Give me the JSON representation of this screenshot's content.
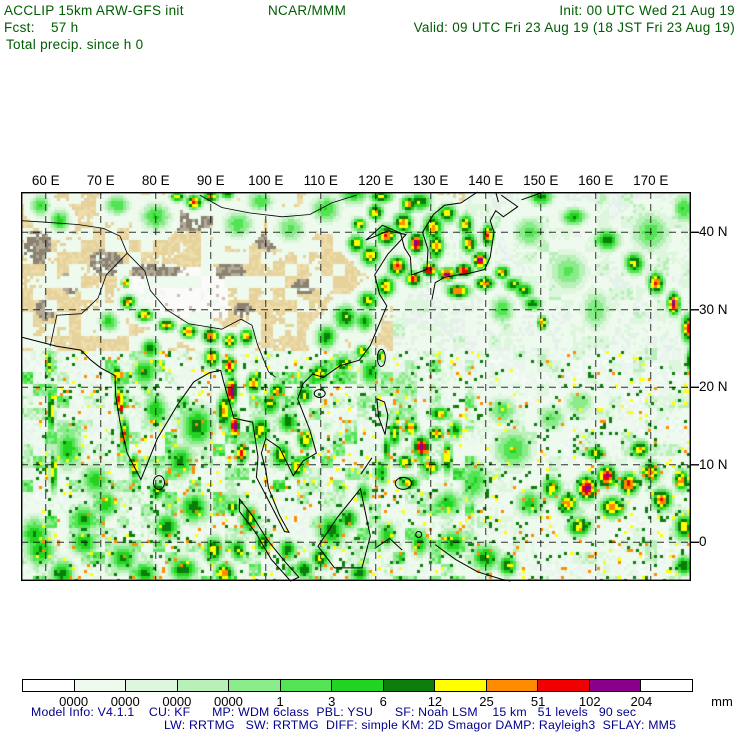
{
  "header": {
    "title": "ACCLIP 15km ARW-GFS init",
    "center": "NCAR/MMM",
    "init": "Init: 00 UTC Wed 21 Aug 19",
    "fcst": "Fcst:    57 h",
    "valid": "Valid: 09 UTC Fri 23 Aug 19 (18 JST Fri 23 Aug 19)",
    "field": "Total precip. since h 0"
  },
  "footer": {
    "line1": "Model Info: V4.1.1    CU: KF      MP: WDM 6class  PBL: YSU      SF: Noah LSM    15 km   51 levels   90 sec",
    "line2": "LW: RRTMG   SW: RRTMG  DIFF: simple KM: 2D Smagor DAMP: Rayleigh3  SFLAY: MM5"
  },
  "colorbar": {
    "labels": [
      "0000",
      "0000",
      "0000",
      "0000",
      "1",
      "3",
      "6",
      "12",
      "25",
      "51",
      "102",
      "204"
    ],
    "unit": "mm",
    "colors": [
      "#ffffff",
      "#edfaed",
      "#ddf6dd",
      "#b9f0b9",
      "#8aeb8a",
      "#52e452",
      "#22d322",
      "#0a7d0a",
      "#ffff00",
      "#ff8c00",
      "#f00000",
      "#8b008b",
      "#ffffff"
    ]
  },
  "map": {
    "lon_ticks": [
      {
        "label": "60 E",
        "lon": 60
      },
      {
        "label": "70 E",
        "lon": 70
      },
      {
        "label": "80 E",
        "lon": 80
      },
      {
        "label": "90 E",
        "lon": 90
      },
      {
        "label": "100 E",
        "lon": 100
      },
      {
        "label": "110 E",
        "lon": 110
      },
      {
        "label": "120 E",
        "lon": 120
      },
      {
        "label": "130 E",
        "lon": 130
      },
      {
        "label": "140 E",
        "lon": 140
      },
      {
        "label": "150 E",
        "lon": 150
      },
      {
        "label": "160 E",
        "lon": 160
      },
      {
        "label": "170 E",
        "lon": 170
      }
    ],
    "lat_ticks": [
      {
        "label": "40 N",
        "lat": 40
      },
      {
        "label": "30 N",
        "lat": 30
      },
      {
        "label": "20 N",
        "lat": 20
      },
      {
        "label": "10 N",
        "lat": 10
      },
      {
        "label": "0",
        "lat": 0
      }
    ],
    "base_colors": {
      "ocean_a": "#f5fbf7",
      "ocean_b": "#eaf5ee",
      "land_a": "#eedcab",
      "land_b": "#e6d29b",
      "gray_a": "#b2a996",
      "gray_b": "#8b8272",
      "plateau": "#fbfbf9",
      "plateau_speck": "#c9c2b6",
      "ne_ocean_a": "#edf6f0",
      "ne_ocean_b": "#e4f1e9"
    },
    "terrain": [
      [
        71,
        36,
        3.5,
        2
      ],
      [
        86.5,
        41.5,
        4.5,
        1.7
      ],
      [
        58.5,
        38,
        3,
        2.5
      ],
      [
        64.5,
        33.5,
        2,
        1.5
      ],
      [
        100.5,
        38.8,
        2.5,
        1.3
      ],
      [
        93.5,
        35,
        3,
        1.3
      ],
      [
        80,
        35,
        5,
        1.2
      ],
      [
        96,
        30,
        2,
        1
      ],
      [
        107,
        33,
        2.5,
        1.2
      ],
      [
        60,
        30,
        2,
        1.5
      ]
    ],
    "features": [
      [
        75,
        31,
        1.6,
        1,
        9.3
      ],
      [
        78,
        29.3,
        1.8,
        0.9,
        9.6
      ],
      [
        82,
        28,
        1.8,
        0.9,
        9.3
      ],
      [
        86,
        27.2,
        1.8,
        1,
        9.8
      ],
      [
        90,
        26.6,
        1.8,
        1.1,
        10.2
      ],
      [
        93.5,
        26,
        1.5,
        1.1,
        9.6
      ],
      [
        96.5,
        26.5,
        1.5,
        1.2,
        9.2
      ],
      [
        74.5,
        33.5,
        0.8,
        0.7,
        10.2
      ],
      [
        71.5,
        28.5,
        2,
        1.5,
        6.5
      ],
      [
        72.9,
        21.5,
        1,
        1.5,
        9.6
      ],
      [
        73.4,
        18.5,
        0.9,
        2,
        10.6
      ],
      [
        74.3,
        14,
        0.9,
        2.2,
        10.2
      ],
      [
        76.2,
        9.8,
        1,
        1.8,
        9.8
      ],
      [
        73.7,
        17.3,
        0.35,
        0.9,
        11.5
      ],
      [
        78,
        22,
        2.5,
        2,
        7.5
      ],
      [
        80,
        17,
        2.5,
        2.5,
        7
      ],
      [
        79,
        25,
        2,
        1.5,
        7.5
      ],
      [
        61,
        17,
        0.7,
        3.5,
        9.3
      ],
      [
        61.4,
        9,
        0.8,
        3,
        8.6
      ],
      [
        60.6,
        23,
        0.7,
        2,
        8.2
      ],
      [
        64,
        12,
        3,
        3,
        6.8
      ],
      [
        69,
        8,
        3,
        2.5,
        6.5
      ],
      [
        67,
        3,
        3,
        2,
        7.2
      ],
      [
        59,
        -1,
        3,
        2.5,
        7.2
      ],
      [
        63,
        -4,
        2.5,
        2,
        7.6
      ],
      [
        93.8,
        19.5,
        1.1,
        2.2,
        11.8
      ],
      [
        94.3,
        15,
        1.1,
        2,
        11.5
      ],
      [
        93.4,
        22.8,
        1.4,
        1.4,
        10.6
      ],
      [
        95.6,
        11.5,
        1.2,
        1.6,
        10.2
      ],
      [
        92.5,
        17,
        1.5,
        2.5,
        9.5
      ],
      [
        90.2,
        23.8,
        1.6,
        1.4,
        9.8
      ],
      [
        87.5,
        15,
        3.5,
        3,
        7.6
      ],
      [
        84.5,
        10.5,
        3,
        2.5,
        7.3
      ],
      [
        87,
        4.5,
        3,
        2.2,
        7.8
      ],
      [
        82,
        2,
        2.7,
        2,
        7.6
      ],
      [
        90.5,
        -1,
        2,
        2,
        8.6
      ],
      [
        92.5,
        -4,
        2,
        1.5,
        9.6
      ],
      [
        85,
        -3.5,
        3,
        1.8,
        8
      ],
      [
        80.3,
        6.6,
        1.6,
        1.3,
        8.2
      ],
      [
        99,
        14.5,
        2,
        2,
        8.6
      ],
      [
        102.8,
        11.2,
        2,
        1.8,
        8.8
      ],
      [
        105.7,
        9.7,
        1.5,
        1.5,
        9.3
      ],
      [
        100.8,
        17.8,
        2,
        1.6,
        8.3
      ],
      [
        107.2,
        13.2,
        1.6,
        1.5,
        9.1
      ],
      [
        102,
        19.5,
        1.6,
        1.2,
        9.2
      ],
      [
        97.8,
        20.5,
        1.5,
        1.5,
        9.6
      ],
      [
        104,
        15.5,
        2,
        1.5,
        8
      ],
      [
        109.8,
        21.8,
        2,
        1.5,
        8.8
      ],
      [
        114,
        23,
        2,
        1.2,
        8.3
      ],
      [
        117.6,
        24.6,
        1.5,
        1,
        8.8
      ],
      [
        121,
        24,
        0.7,
        0.8,
        9.8
      ],
      [
        119,
        22,
        2,
        2,
        7.3
      ],
      [
        111,
        26.5,
        2.2,
        1.8,
        7.6
      ],
      [
        114.5,
        29,
        2.4,
        1.8,
        8.1
      ],
      [
        118,
        28.5,
        2,
        1.5,
        7.4
      ],
      [
        107,
        19,
        1.8,
        1.3,
        8.6
      ],
      [
        118.6,
        31.2,
        2,
        1.3,
        8.6
      ],
      [
        121.8,
        33,
        2,
        1.5,
        9.2
      ],
      [
        119,
        37,
        2,
        1.5,
        9.2
      ],
      [
        122,
        39.6,
        2,
        1.5,
        10.2
      ],
      [
        125,
        41.2,
        2,
        1.5,
        9.7
      ],
      [
        127.4,
        38.6,
        1.5,
        1.5,
        11.7
      ],
      [
        124,
        35.6,
        2,
        1.5,
        10.2
      ],
      [
        126.8,
        34,
        1.6,
        1.1,
        10.6
      ],
      [
        129.8,
        35.2,
        1.5,
        1,
        11.5
      ],
      [
        133,
        34.6,
        1.8,
        0.9,
        11.7
      ],
      [
        136,
        35.1,
        1.8,
        0.9,
        11.3
      ],
      [
        139,
        36.4,
        1.5,
        1.2,
        11.6
      ],
      [
        140.4,
        39.6,
        1.2,
        1.6,
        10.2
      ],
      [
        137,
        38.6,
        1.6,
        1.6,
        9.2
      ],
      [
        131,
        38.2,
        1.6,
        2,
        9.3
      ],
      [
        135,
        32.4,
        2.4,
        1,
        10.3
      ],
      [
        139.8,
        33.4,
        2,
        1,
        9.7
      ],
      [
        143,
        34.8,
        1.6,
        1,
        9.2
      ],
      [
        120,
        42.6,
        1.6,
        1.2,
        9.2
      ],
      [
        117,
        41,
        1.6,
        1,
        8.7
      ],
      [
        121,
        44.6,
        2.4,
        1,
        8.7
      ],
      [
        128,
        44,
        2.4,
        1.4,
        8.2
      ],
      [
        133,
        42.4,
        2,
        1.4,
        8.6
      ],
      [
        136.4,
        41,
        1.5,
        1.5,
        9.2
      ],
      [
        130.4,
        40.6,
        2,
        2,
        9.3
      ],
      [
        126,
        43.6,
        1.6,
        1.2,
        9.7
      ],
      [
        116.5,
        38.5,
        1.8,
        1.4,
        8.8
      ],
      [
        87,
        43.9,
        1.6,
        1,
        10.6
      ],
      [
        90,
        44.6,
        1.6,
        0.8,
        9.7
      ],
      [
        84,
        44.6,
        1.6,
        0.8,
        8.7
      ],
      [
        93,
        44.9,
        1.4,
        0.7,
        8.2
      ],
      [
        80,
        42,
        3,
        2,
        6.2
      ],
      [
        95,
        41,
        3,
        2,
        5.7
      ],
      [
        104.5,
        40.5,
        3,
        2,
        5.3
      ],
      [
        111,
        43,
        3,
        2,
        6.1
      ],
      [
        116,
        45,
        3,
        1.6,
        6.6
      ],
      [
        62.5,
        41.5,
        2,
        1.6,
        6.6
      ],
      [
        59,
        43.5,
        2,
        1.6,
        6.1
      ],
      [
        73,
        43.5,
        2.5,
        1.5,
        6
      ],
      [
        99,
        44,
        2.5,
        1.5,
        6
      ],
      [
        150,
        44.6,
        2.5,
        1.3,
        7.6
      ],
      [
        156,
        42,
        2.6,
        1.3,
        7.2
      ],
      [
        162,
        39,
        2.6,
        1.6,
        7.7
      ],
      [
        167,
        36,
        2,
        1.6,
        8.7
      ],
      [
        171,
        33.4,
        1.6,
        1.6,
        10.2
      ],
      [
        174.2,
        30.8,
        1.3,
        1.6,
        11.4
      ],
      [
        176.8,
        27.6,
        1.3,
        2,
        10.6
      ],
      [
        177.4,
        23.5,
        1.1,
        2,
        9.7
      ],
      [
        178,
        19.5,
        1,
        2,
        9
      ],
      [
        155,
        35,
        4,
        3,
        5.2
      ],
      [
        148,
        40,
        3.2,
        2.2,
        5.6
      ],
      [
        160,
        30,
        3,
        3,
        5.1
      ],
      [
        170,
        40,
        4,
        3,
        5.6
      ],
      [
        176,
        43,
        2.2,
        2.2,
        6.1
      ],
      [
        143,
        30,
        2.5,
        2,
        6
      ],
      [
        150.3,
        28.3,
        1,
        1,
        10.1
      ],
      [
        147,
        32.5,
        2,
        1.2,
        8.2
      ],
      [
        145,
        33.3,
        2,
        1,
        8.2
      ],
      [
        148.5,
        30.8,
        2,
        1,
        7.7
      ],
      [
        128.3,
        12.3,
        0.5,
        0.45,
        13.4
      ],
      [
        128.3,
        12.3,
        1.7,
        1.5,
        11.7
      ],
      [
        126.4,
        14.8,
        1.6,
        1,
        9.7
      ],
      [
        131,
        14,
        1.6,
        1,
        9.7
      ],
      [
        130,
        9.7,
        1.8,
        1,
        9.7
      ],
      [
        125.4,
        10.4,
        1.6,
        1,
        9.3
      ],
      [
        123.4,
        14,
        1.2,
        2,
        8.7
      ],
      [
        133,
        11,
        1,
        2.4,
        9.2
      ],
      [
        131.6,
        16.6,
        2.2,
        1,
        8.7
      ],
      [
        126,
        7.7,
        2.2,
        1,
        8.7
      ],
      [
        122,
        12,
        0.8,
        2,
        8.2
      ],
      [
        134.5,
        14.5,
        1.5,
        1.5,
        7.6
      ],
      [
        121,
        9,
        1.6,
        2,
        7.2
      ],
      [
        117.8,
        6.4,
        1.6,
        1.6,
        7.1
      ],
      [
        158.4,
        7,
        2,
        1.8,
        11.7
      ],
      [
        162,
        8.5,
        2,
        1.6,
        11.3
      ],
      [
        166,
        7.5,
        2,
        1.6,
        10.6
      ],
      [
        170,
        9,
        2,
        1.6,
        9.7
      ],
      [
        155,
        5,
        2,
        1.6,
        9.7
      ],
      [
        163,
        4.5,
        2.6,
        1.6,
        9.7
      ],
      [
        172,
        5.5,
        2,
        1.6,
        10.2
      ],
      [
        175.6,
        8,
        1.6,
        1.6,
        9.7
      ],
      [
        168,
        12,
        2,
        1.3,
        9.2
      ],
      [
        160,
        11.5,
        2,
        1,
        8.7
      ],
      [
        152,
        7,
        2,
        1.6,
        8.7
      ],
      [
        176,
        2,
        2,
        2,
        8.7
      ],
      [
        157,
        2,
        2.5,
        1.5,
        8.8
      ],
      [
        145,
        12,
        4,
        3,
        6.1
      ],
      [
        138,
        8,
        3,
        3,
        6.1
      ],
      [
        133,
        5,
        3,
        2,
        6.6
      ],
      [
        148,
        5,
        3,
        2,
        6.6
      ],
      [
        143,
        17,
        3,
        2,
        5.6
      ],
      [
        152,
        16,
        3,
        2,
        5.2
      ],
      [
        157,
        18,
        3,
        2,
        5
      ],
      [
        134,
        0,
        3,
        2,
        7.2
      ],
      [
        140,
        -2,
        3,
        2,
        7.6
      ],
      [
        144,
        -3,
        2,
        1.6,
        8.2
      ],
      [
        128,
        0,
        2,
        2,
        7.2
      ],
      [
        122,
        1,
        2,
        2,
        6.7
      ],
      [
        176,
        -3,
        2,
        1.5,
        8
      ],
      [
        112,
        1.5,
        3,
        2.6,
        7.6
      ],
      [
        115,
        3,
        2,
        1.6,
        8.2
      ],
      [
        110,
        -2,
        2,
        1.6,
        8.3
      ],
      [
        117,
        -4,
        2,
        1.3,
        8
      ],
      [
        97,
        3,
        2,
        2,
        8.2
      ],
      [
        99.5,
        0,
        1.6,
        1.6,
        8.7
      ],
      [
        95,
        -1,
        1.6,
        1.6,
        8.2
      ],
      [
        104,
        -1,
        2,
        1.6,
        7.7
      ],
      [
        94,
        4.5,
        1.6,
        1,
        8.7
      ],
      [
        107,
        -3.5,
        2,
        1.4,
        8
      ],
      [
        67,
        0,
        3,
        2,
        7.2
      ],
      [
        74,
        -2,
        3,
        2,
        7.2
      ],
      [
        78,
        -4,
        2.5,
        1.6,
        7.7
      ],
      [
        58,
        1,
        3,
        2.5,
        7.1
      ],
      [
        71,
        5,
        2.5,
        2,
        7
      ]
    ]
  }
}
